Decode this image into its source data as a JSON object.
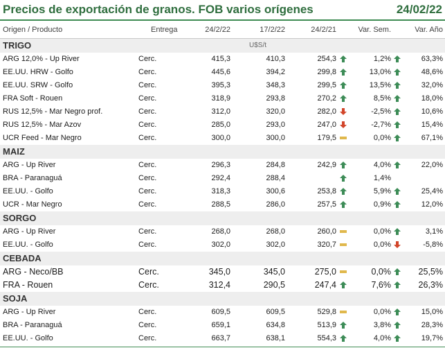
{
  "title": "Precios de exportación de granos. FOB varios orígenes",
  "date": "24/02/22",
  "headers": {
    "origin": "Origen / Producto",
    "delivery": "Entrega",
    "d1": "24/2/22",
    "d2": "17/2/22",
    "d3": "24/2/21",
    "week": "Var. Sem.",
    "year": "Var. Año"
  },
  "unit": "U$S/t",
  "colors": {
    "up": "#3d8c57",
    "down": "#d2452a",
    "flat": "#e0b84c",
    "accent": "#2f6e3e"
  },
  "sections": [
    {
      "name": "TRIGO",
      "rows": [
        {
          "origin": "ARG 12,0% - Up River",
          "delivery": "Cerc.",
          "v1": "415,3",
          "v2": "410,3",
          "v3": "254,3",
          "i1": "up",
          "ws": "1,2%",
          "i2": "up",
          "ya": "63,3%"
        },
        {
          "origin": "EE.UU. HRW - Golfo",
          "delivery": "Cerc.",
          "v1": "445,6",
          "v2": "394,2",
          "v3": "299,8",
          "i1": "up",
          "ws": "13,0%",
          "i2": "up",
          "ya": "48,6%"
        },
        {
          "origin": "EE.UU. SRW - Golfo",
          "delivery": "Cerc.",
          "v1": "395,3",
          "v2": "348,3",
          "v3": "299,5",
          "i1": "up",
          "ws": "13,5%",
          "i2": "up",
          "ya": "32,0%"
        },
        {
          "origin": "FRA Soft - Rouen",
          "delivery": "Cerc.",
          "v1": "318,9",
          "v2": "293,8",
          "v3": "270,2",
          "i1": "up",
          "ws": "8,5%",
          "i2": "up",
          "ya": "18,0%"
        },
        {
          "origin": "RUS 12,5% - Mar Negro prof.",
          "delivery": "Cerc.",
          "v1": "312,0",
          "v2": "320,0",
          "v3": "282,0",
          "i1": "down",
          "ws": "-2,5%",
          "i2": "up",
          "ya": "10,6%"
        },
        {
          "origin": "RUS 12,5% - Mar Azov",
          "delivery": "Cerc.",
          "v1": "285,0",
          "v2": "293,0",
          "v3": "247,0",
          "i1": "down",
          "ws": "-2,7%",
          "i2": "up",
          "ya": "15,4%"
        },
        {
          "origin": "UCR Feed - Mar Negro",
          "delivery": "Cerc.",
          "v1": "300,0",
          "v2": "300,0",
          "v3": "179,5",
          "i1": "flat",
          "ws": "0,0%",
          "i2": "up",
          "ya": "67,1%"
        }
      ]
    },
    {
      "name": "MAIZ",
      "rows": [
        {
          "origin": "ARG - Up River",
          "delivery": "Cerc.",
          "v1": "296,3",
          "v2": "284,8",
          "v3": "242,9",
          "i1": "up",
          "ws": "4,0%",
          "i2": "up",
          "ya": "22,0%"
        },
        {
          "origin": "BRA - Paranaguá",
          "delivery": "Cerc.",
          "v1": "292,4",
          "v2": "288,4",
          "v3": "",
          "i1": "up",
          "ws": "1,4%",
          "i2": "",
          "ya": ""
        },
        {
          "origin": "EE.UU. - Golfo",
          "delivery": "Cerc.",
          "v1": "318,3",
          "v2": "300,6",
          "v3": "253,8",
          "i1": "up",
          "ws": "5,9%",
          "i2": "up",
          "ya": "25,4%"
        },
        {
          "origin": "UCR - Mar Negro",
          "delivery": "Cerc.",
          "v1": "288,5",
          "v2": "286,0",
          "v3": "257,5",
          "i1": "up",
          "ws": "0,9%",
          "i2": "up",
          "ya": "12,0%"
        }
      ]
    },
    {
      "name": "SORGO",
      "rows": [
        {
          "origin": "ARG - Up River",
          "delivery": "Cerc.",
          "v1": "268,0",
          "v2": "268,0",
          "v3": "260,0",
          "i1": "flat",
          "ws": "0,0%",
          "i2": "up",
          "ya": "3,1%"
        },
        {
          "origin": "EE.UU. - Golfo",
          "delivery": "Cerc.",
          "v1": "302,0",
          "v2": "302,0",
          "v3": "320,7",
          "i1": "flat",
          "ws": "0,0%",
          "i2": "down",
          "ya": "-5,8%"
        }
      ]
    },
    {
      "name": "CEBADA",
      "big": true,
      "rows": [
        {
          "origin": "ARG - Neco/BB",
          "delivery": "Cerc.",
          "v1": "345,0",
          "v2": "345,0",
          "v3": "275,0",
          "i1": "flat",
          "ws": "0,0%",
          "i2": "up",
          "ya": "25,5%"
        },
        {
          "origin": "FRA - Rouen",
          "delivery": "Cerc.",
          "v1": "312,4",
          "v2": "290,5",
          "v3": "247,4",
          "i1": "up",
          "ws": "7,6%",
          "i2": "up",
          "ya": "26,3%"
        }
      ]
    },
    {
      "name": "SOJA",
      "rows": [
        {
          "origin": "ARG - Up River",
          "delivery": "Cerc.",
          "v1": "609,5",
          "v2": "609,5",
          "v3": "529,8",
          "i1": "flat",
          "ws": "0,0%",
          "i2": "up",
          "ya": "15,0%"
        },
        {
          "origin": "BRA - Paranaguá",
          "delivery": "Cerc.",
          "v1": "659,1",
          "v2": "634,8",
          "v3": "513,9",
          "i1": "up",
          "ws": "3,8%",
          "i2": "up",
          "ya": "28,3%"
        },
        {
          "origin": "EE.UU. - Golfo",
          "delivery": "Cerc.",
          "v1": "663,7",
          "v2": "638,1",
          "v3": "554,3",
          "i1": "up",
          "ws": "4,0%",
          "i2": "up",
          "ya": "19,7%"
        }
      ]
    }
  ]
}
